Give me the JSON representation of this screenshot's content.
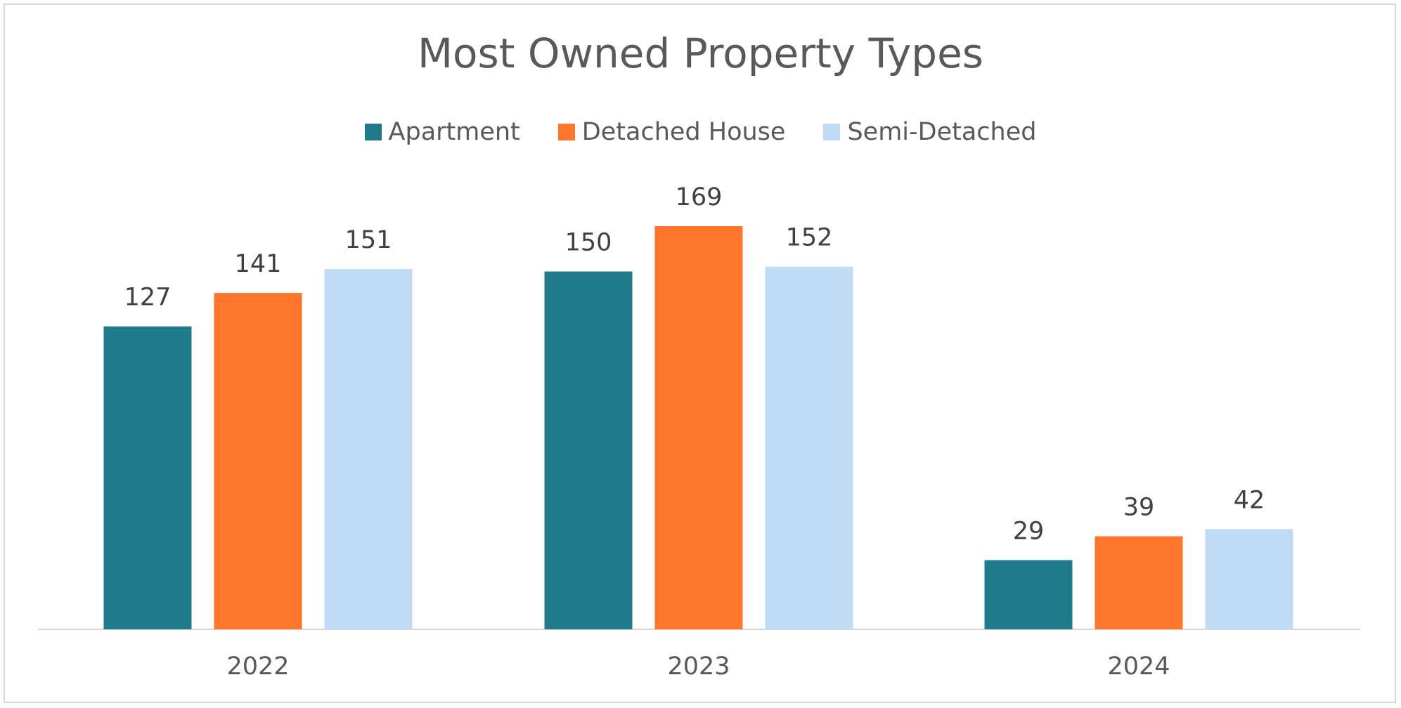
{
  "chart_data": {
    "type": "bar",
    "title": "Most Owned Property Types",
    "xlabel": "",
    "ylabel": "",
    "categories": [
      "2022",
      "2023",
      "2024"
    ],
    "series": [
      {
        "name": "Apartment",
        "color": "#1f7a8c",
        "values": [
          127,
          150,
          29
        ]
      },
      {
        "name": "Detached House",
        "color": "#ff752b",
        "values": [
          141,
          169,
          39
        ]
      },
      {
        "name": "Semi-Detached",
        "color": "#c0dbf6",
        "values": [
          151,
          152,
          42
        ]
      }
    ],
    "ylim": [
      0,
      169
    ],
    "grid": false,
    "legend_position": "top",
    "data_labels": true
  }
}
